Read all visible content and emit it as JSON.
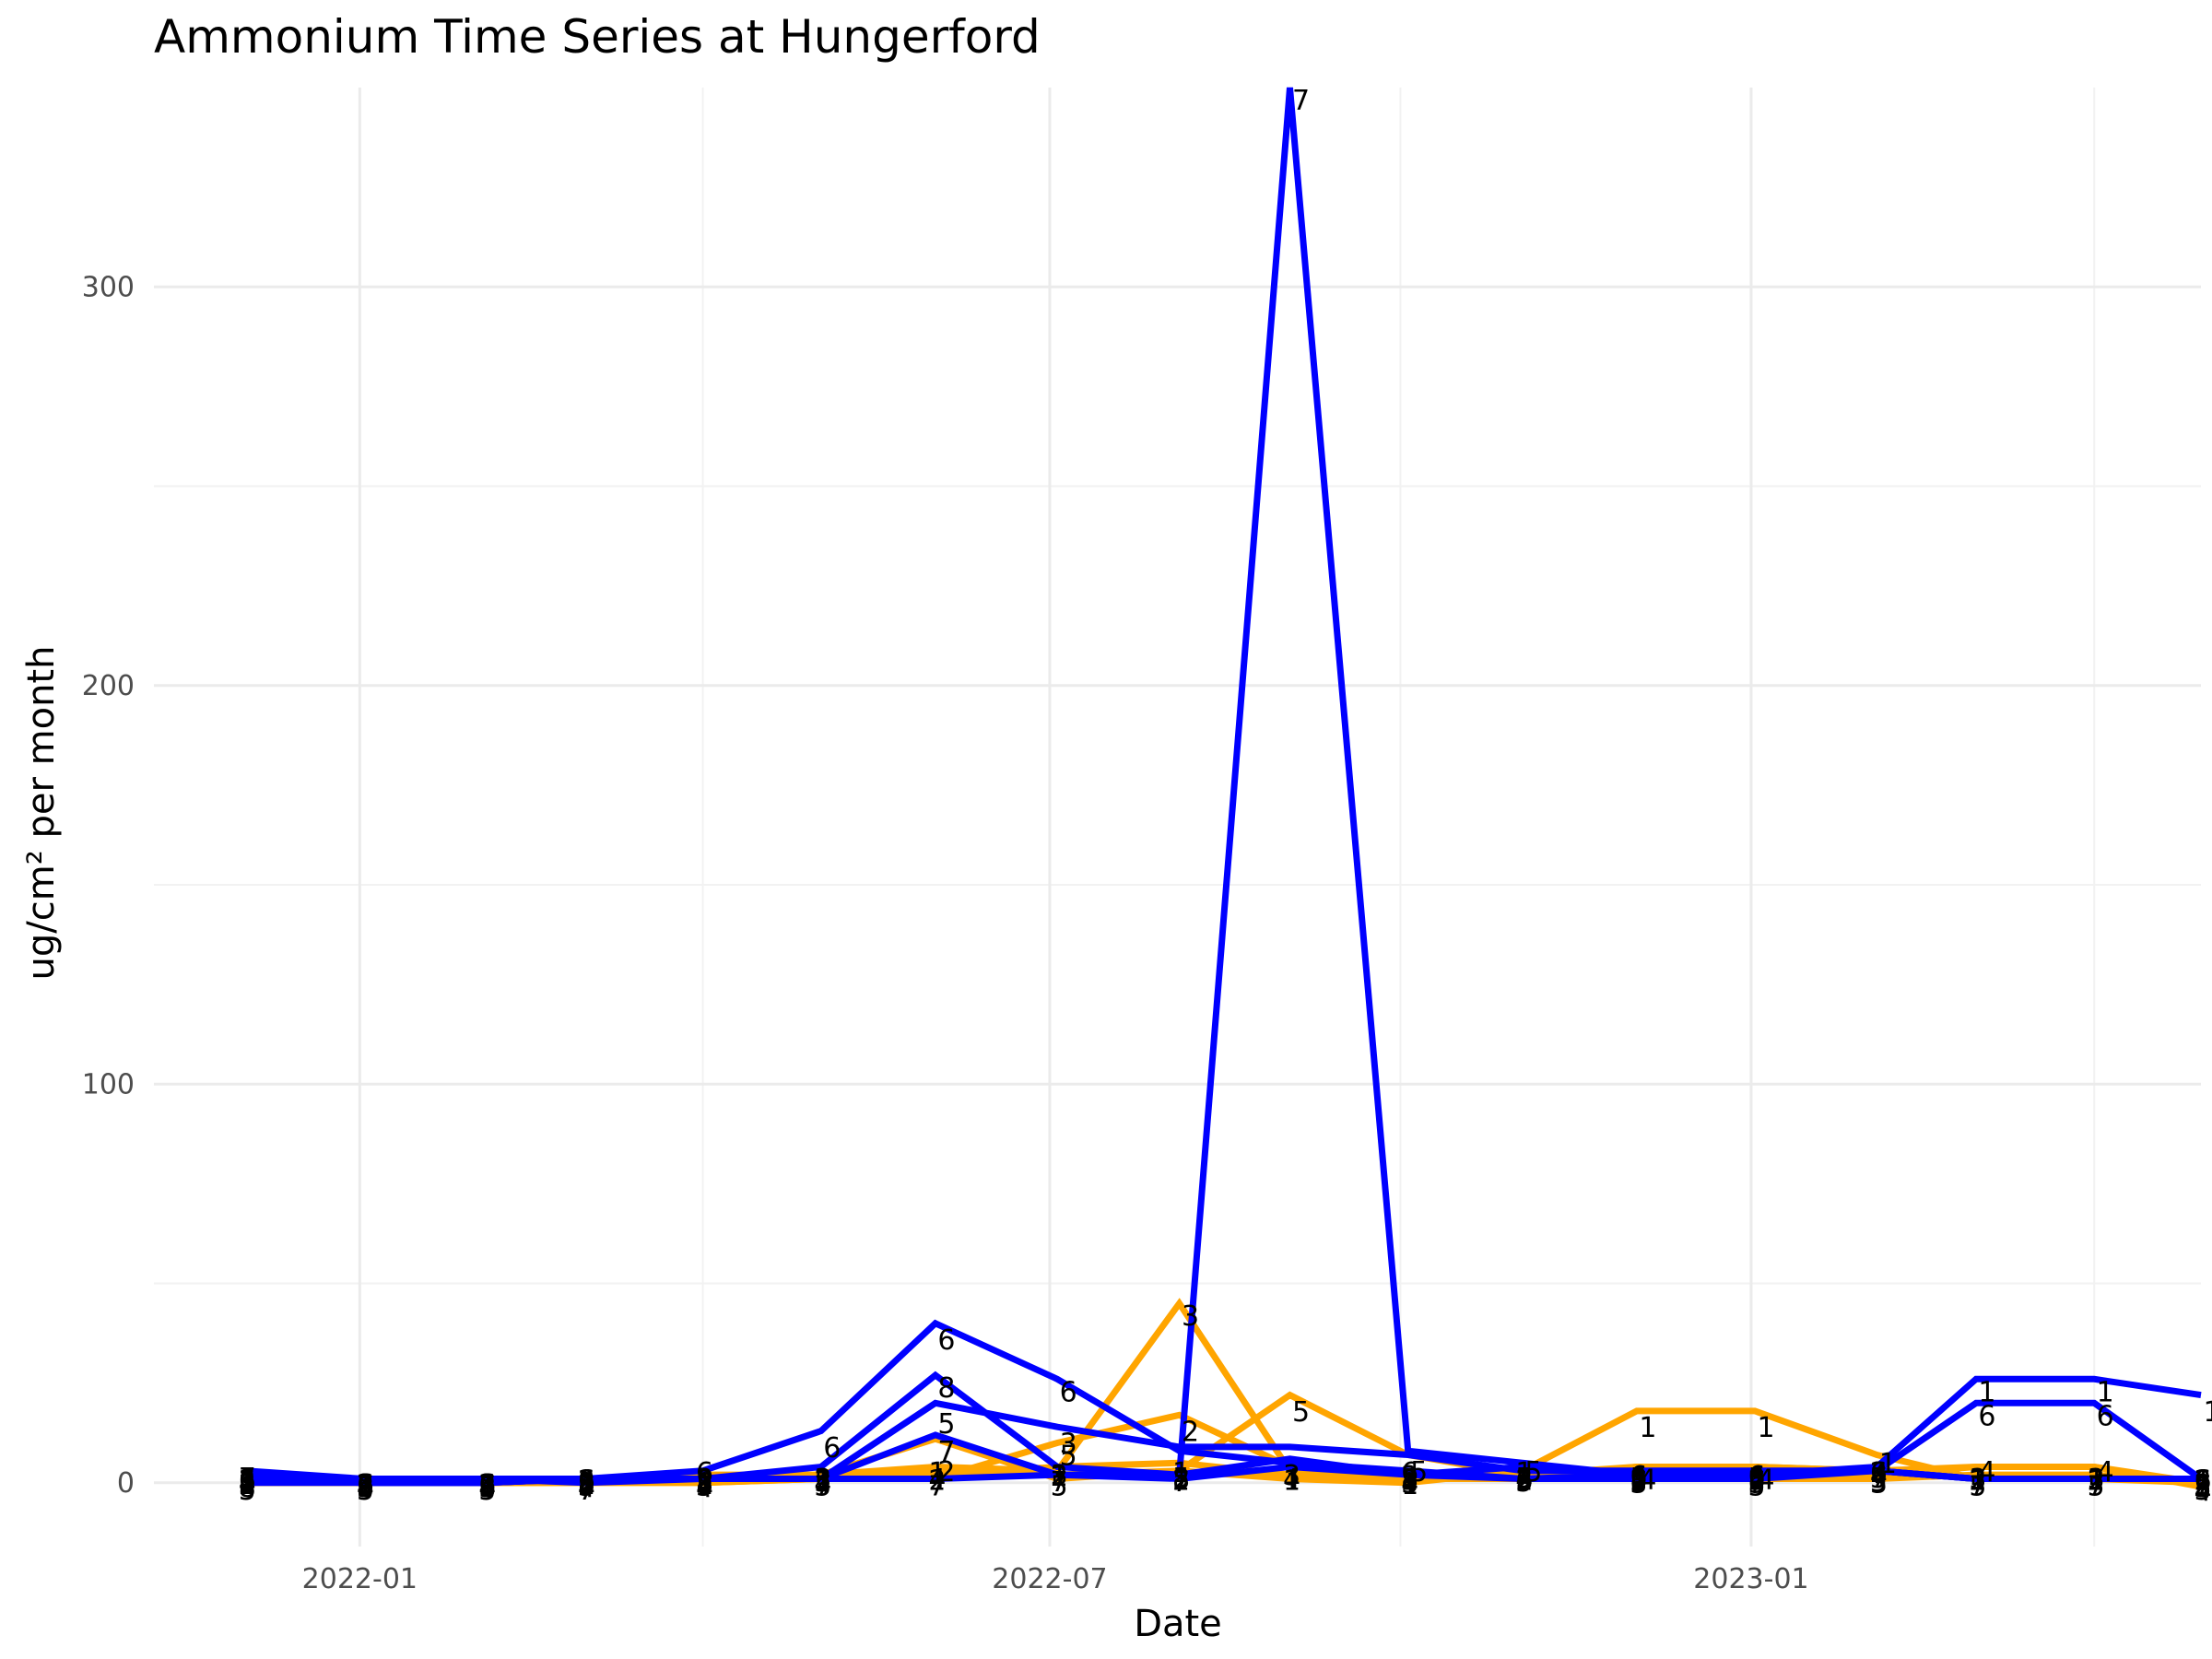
{
  "chart_data": {
    "type": "line",
    "title": "Ammonium Time Series at Hungerford",
    "xlabel": "Date",
    "ylabel": "ug/cm² per month",
    "x_ticks": [
      "2022-01",
      "2022-07",
      "2023-01"
    ],
    "y_ticks": [
      0,
      100,
      200,
      300
    ],
    "ylim": [
      -16,
      350
    ],
    "xlim": [
      "2021-11-08",
      "2023-04-29"
    ],
    "grid": true,
    "legend": "none",
    "dates": [
      "2021-12-02",
      "2022-01-02",
      "2022-02-03",
      "2022-03-01",
      "2022-04-01",
      "2022-05-02",
      "2022-06-01",
      "2022-07-03",
      "2022-08-04",
      "2022-09-02",
      "2022-10-03",
      "2022-11-02",
      "2022-12-02",
      "2023-01-02",
      "2023-02-03",
      "2023-03-01",
      "2023-04-01",
      "2023-04-29"
    ],
    "series": [
      {
        "color": "#ffa500",
        "label": "1",
        "values": [
          0,
          0,
          0,
          0,
          0,
          1,
          3,
          2,
          3,
          1,
          0,
          3,
          18,
          18,
          7,
          1,
          1,
          1
        ]
      },
      {
        "color": "#ffa500",
        "label": "3",
        "values": [
          1,
          0,
          0,
          1,
          2,
          2,
          4,
          3,
          45,
          3,
          1,
          2,
          1,
          1,
          1,
          2,
          2,
          0
        ]
      },
      {
        "color": "#ffa500",
        "label": "5",
        "values": [
          0,
          0,
          0,
          1,
          1,
          2,
          11,
          1,
          3,
          22,
          7,
          2,
          2,
          1,
          2,
          4,
          4,
          0
        ]
      },
      {
        "color": "#ffa500",
        "label": "2",
        "values": [
          0,
          0,
          0,
          0,
          1,
          1,
          1,
          10,
          17,
          4,
          1,
          1,
          4,
          4,
          3,
          1,
          1,
          0
        ]
      },
      {
        "color": "#ffa500",
        "label": "4",
        "values": [
          1,
          0,
          0,
          0,
          0,
          1,
          2,
          4,
          5,
          2,
          1,
          2,
          4,
          4,
          3,
          4,
          4,
          -1
        ]
      },
      {
        "color": "#0000ff",
        "label": "7",
        "values": [
          3,
          1,
          1,
          0,
          1,
          1,
          1,
          2,
          2,
          350,
          8,
          5,
          2,
          2,
          3,
          1,
          1,
          1
        ]
      },
      {
        "color": "#0000ff",
        "label": "6",
        "values": [
          1,
          0,
          0,
          1,
          3,
          13,
          40,
          26,
          8,
          5,
          3,
          1,
          2,
          2,
          3,
          20,
          20,
          1
        ]
      },
      {
        "color": "#0000ff",
        "label": "8",
        "values": [
          0,
          0,
          0,
          1,
          1,
          4,
          27,
          4,
          2,
          6,
          2,
          4,
          2,
          2,
          4,
          26,
          26,
          22
        ]
      },
      {
        "color": "#0000ff",
        "label": "5",
        "values": [
          2,
          1,
          1,
          1,
          1,
          1,
          20,
          14,
          9,
          9,
          7,
          3,
          3,
          3,
          3,
          1,
          1,
          1
        ]
      },
      {
        "color": "#0000ff",
        "label": "2",
        "values": [
          1,
          0,
          0,
          1,
          1,
          1,
          12,
          2,
          1,
          4,
          2,
          1,
          1,
          1,
          3,
          1,
          1,
          1
        ]
      }
    ],
    "annotations": [
      {
        "text": "7",
        "x": "2022-09-02",
        "y": 347
      },
      {
        "text": "6",
        "x": "2022-06-01",
        "y": 36
      },
      {
        "text": "8",
        "x": "2022-06-01",
        "y": 24
      },
      {
        "text": "5",
        "x": "2022-06-01",
        "y": 15
      },
      {
        "text": "7",
        "x": "2022-06-01",
        "y": 8
      },
      {
        "text": "2",
        "x": "2022-06-01",
        "y": 3
      },
      {
        "text": "6",
        "x": "2022-07-03",
        "y": 23
      },
      {
        "text": "3",
        "x": "2022-07-03",
        "y": 10
      },
      {
        "text": "5",
        "x": "2022-07-03",
        "y": 7
      },
      {
        "text": "3",
        "x": "2022-08-04",
        "y": 42
      },
      {
        "text": "2",
        "x": "2022-08-04",
        "y": 13
      },
      {
        "text": "5",
        "x": "2022-09-02",
        "y": 18
      },
      {
        "text": "6",
        "x": "2022-05-02",
        "y": 9
      },
      {
        "text": "1",
        "x": "2022-12-02",
        "y": 14
      },
      {
        "text": "1",
        "x": "2023-01-02",
        "y": 14
      },
      {
        "text": "1",
        "x": "2023-03-01",
        "y": 23
      },
      {
        "text": "6",
        "x": "2023-03-01",
        "y": 17
      },
      {
        "text": "4",
        "x": "2023-03-01",
        "y": 3
      },
      {
        "text": "1",
        "x": "2023-04-01",
        "y": 23
      },
      {
        "text": "6",
        "x": "2023-04-01",
        "y": 17
      },
      {
        "text": "4",
        "x": "2023-04-01",
        "y": 3
      },
      {
        "text": "1",
        "x": "2023-04-29",
        "y": 18
      },
      {
        "text": "1",
        "x": "2023-02-03",
        "y": 5
      },
      {
        "text": "5",
        "x": "2022-10-03",
        "y": 3
      },
      {
        "text": "5",
        "x": "2022-11-02",
        "y": 3
      },
      {
        "text": "4",
        "x": "2022-12-02",
        "y": 1
      },
      {
        "text": "4",
        "x": "2023-01-02",
        "y": 1
      }
    ]
  }
}
